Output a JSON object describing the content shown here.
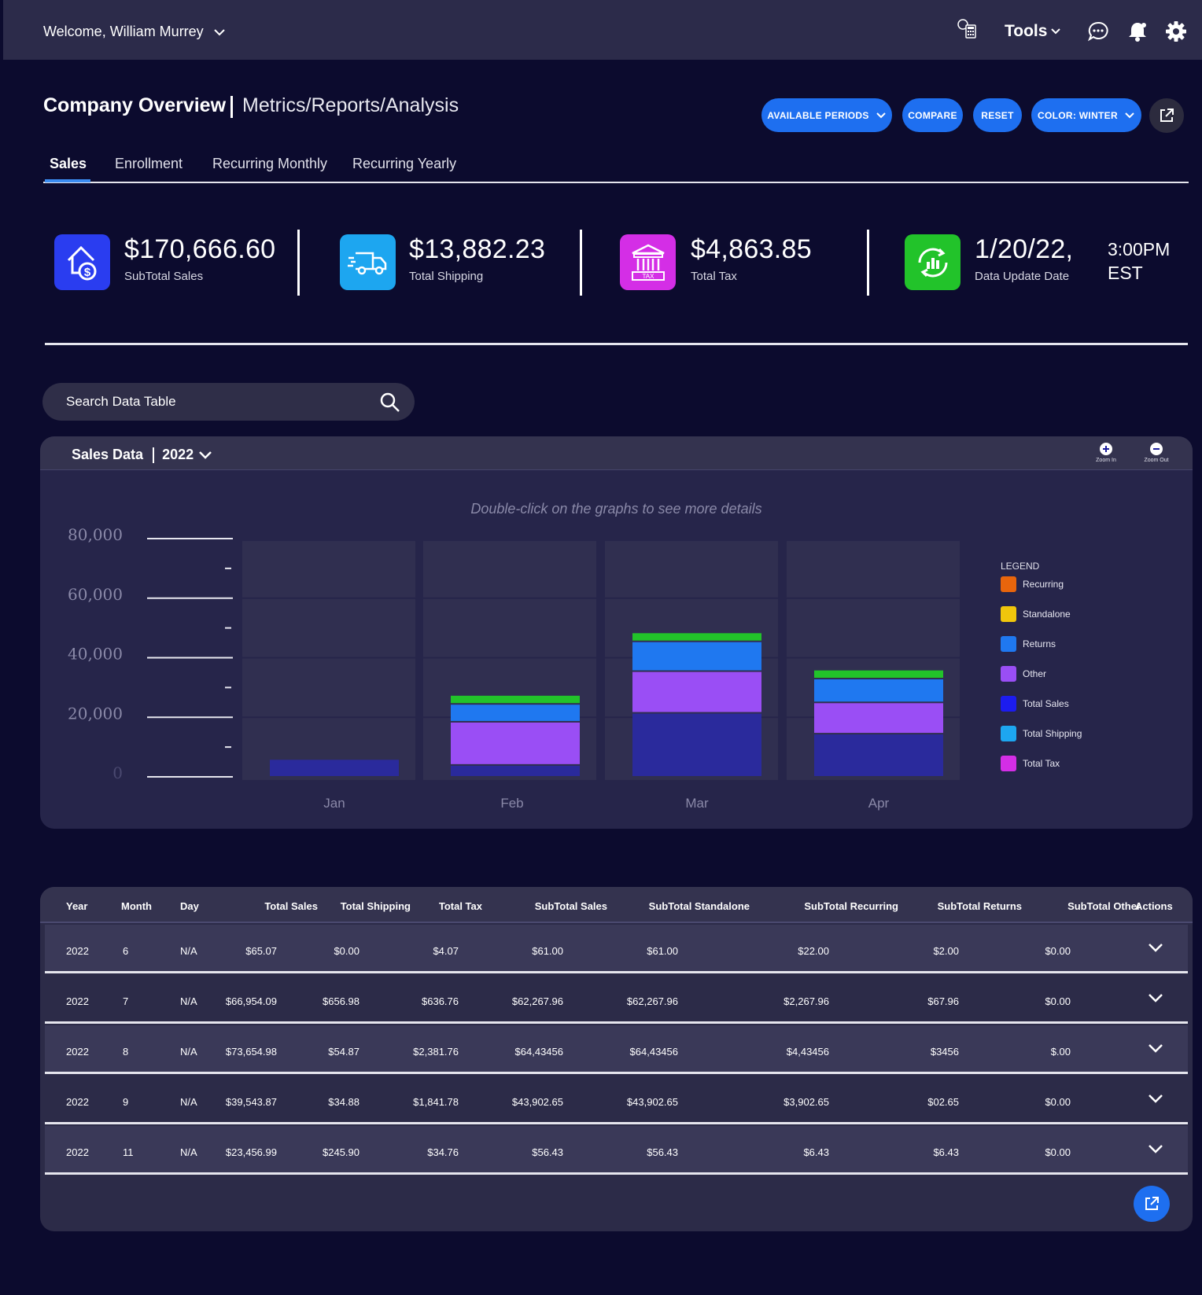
{
  "header": {
    "welcome": "Welcome, William Murrey",
    "tools_label": "Tools"
  },
  "page": {
    "title": "Company Overview",
    "subtitle": "Metrics/Reports/Analysis",
    "buttons": {
      "available_periods": "AVAILABLE PERIODS",
      "compare": "COMPARE",
      "reset": "RESET",
      "color": "COLOR: WINTER"
    },
    "tabs": [
      "Sales",
      "Enrollment",
      "Recurring Monthly",
      "Recurring Yearly"
    ]
  },
  "kpis": [
    {
      "value": "$170,666.60",
      "label": "SubTotal Sales",
      "color": "#2a3df0",
      "icon": "house-dollar-icon"
    },
    {
      "value": "$13,882.23",
      "label": "Total Shipping",
      "color": "#1da6f0",
      "icon": "truck-icon"
    },
    {
      "value": "$4,863.85",
      "label": "Total Tax",
      "color": "#d42ee6",
      "icon": "tax-building-icon"
    },
    {
      "value": "1/20/22,",
      "label": "Data Update Date",
      "color": "#22c32a",
      "icon": "refresh-chart-icon",
      "time_line1": "3:00PM",
      "time_line2": "EST"
    }
  ],
  "search": {
    "placeholder": "Search Data Table"
  },
  "chart_panel": {
    "title": "Sales Data",
    "year": "2022",
    "zoom_in": "Zoom In",
    "zoom_out": "Zoom Out",
    "hint": "Double-click on the graphs to see more details",
    "legend_title": "LEGEND"
  },
  "chart_data": {
    "type": "bar",
    "stacked": true,
    "categories": [
      "Jan",
      "Feb",
      "Mar",
      "Apr"
    ],
    "ylim": [
      0,
      80000
    ],
    "yticks": [
      "80,000",
      "60,000",
      "40,000",
      "20,000",
      "0"
    ],
    "series": [
      {
        "name": "Recurring",
        "color": "#e8650c",
        "values": [
          0,
          0,
          0,
          0
        ]
      },
      {
        "name": "Standalone",
        "color": "#f0c60c",
        "values": [
          0,
          0,
          0,
          0
        ]
      },
      {
        "name": "Returns",
        "color": "#1f78f0",
        "values": [
          0,
          0,
          0,
          0
        ]
      },
      {
        "name": "Other",
        "color": "#9a4ef5",
        "values": [
          0,
          0,
          0,
          0
        ]
      },
      {
        "name": "Total Sales",
        "color": "#1c1cf0",
        "values": [
          0,
          0,
          0,
          0
        ]
      },
      {
        "name": "Total Shipping",
        "color": "#1da6f0",
        "values": [
          0,
          0,
          0,
          0
        ]
      },
      {
        "name": "Total Tax",
        "color": "#d42ee6",
        "values": [
          0,
          0,
          0,
          0
        ]
      }
    ],
    "bars": [
      {
        "category": "Jan",
        "segments": [
          {
            "color": "#2a2a9c",
            "value": 6000
          }
        ]
      },
      {
        "category": "Feb",
        "segments": [
          {
            "color": "#2a2a9c",
            "value": 4000
          },
          {
            "color": "#9a4ef5",
            "value": 14500
          },
          {
            "color": "#1f78f0",
            "value": 6000
          },
          {
            "color": "#22c32a",
            "value": 3000
          }
        ]
      },
      {
        "category": "Mar",
        "segments": [
          {
            "color": "#2a2a9c",
            "value": 21500
          },
          {
            "color": "#9a4ef5",
            "value": 14000
          },
          {
            "color": "#1f78f0",
            "value": 10000
          },
          {
            "color": "#22c32a",
            "value": 3000
          }
        ]
      },
      {
        "category": "Apr",
        "segments": [
          {
            "color": "#2a2a9c",
            "value": 14500
          },
          {
            "color": "#9a4ef5",
            "value": 10500
          },
          {
            "color": "#1f78f0",
            "value": 8000
          },
          {
            "color": "#22c32a",
            "value": 3000
          }
        ]
      }
    ]
  },
  "table": {
    "columns": [
      "Year",
      "Month",
      "Day",
      "Total Sales",
      "Total Shipping",
      "Total Tax",
      "SubTotal Sales",
      "SubTotal Standalone",
      "SubTotal Recurring",
      "SubTotal Returns",
      "SubTotal Other",
      "Actions"
    ],
    "rows": [
      [
        "2022",
        "6",
        "N/A",
        "$65.07",
        "$0.00",
        "$4.07",
        "$61.00",
        "$61.00",
        "$22.00",
        "$2.00",
        "$0.00"
      ],
      [
        "2022",
        "7",
        "N/A",
        "$66,954.09",
        "$656.98",
        "$636.76",
        "$62,267.96",
        "$62,267.96",
        "$2,267.96",
        "$67.96",
        "$0.00"
      ],
      [
        "2022",
        "8",
        "N/A",
        "$73,654.98",
        "$54.87",
        "$2,381.76",
        "$64,43456",
        "$64,43456",
        "$4,43456",
        "$3456",
        "$.00"
      ],
      [
        "2022",
        "9",
        "N/A",
        "$39,543.87",
        "$34.88",
        "$1,841.78",
        "$43,902.65",
        "$43,902.65",
        "$3,902.65",
        "$02.65",
        "$0.00"
      ],
      [
        "2022",
        "11",
        "N/A",
        "$23,456.99",
        "$245.90",
        "$34.76",
        "$56.43",
        "$56.43",
        "$6.43",
        "$6.43",
        "$0.00"
      ]
    ]
  }
}
